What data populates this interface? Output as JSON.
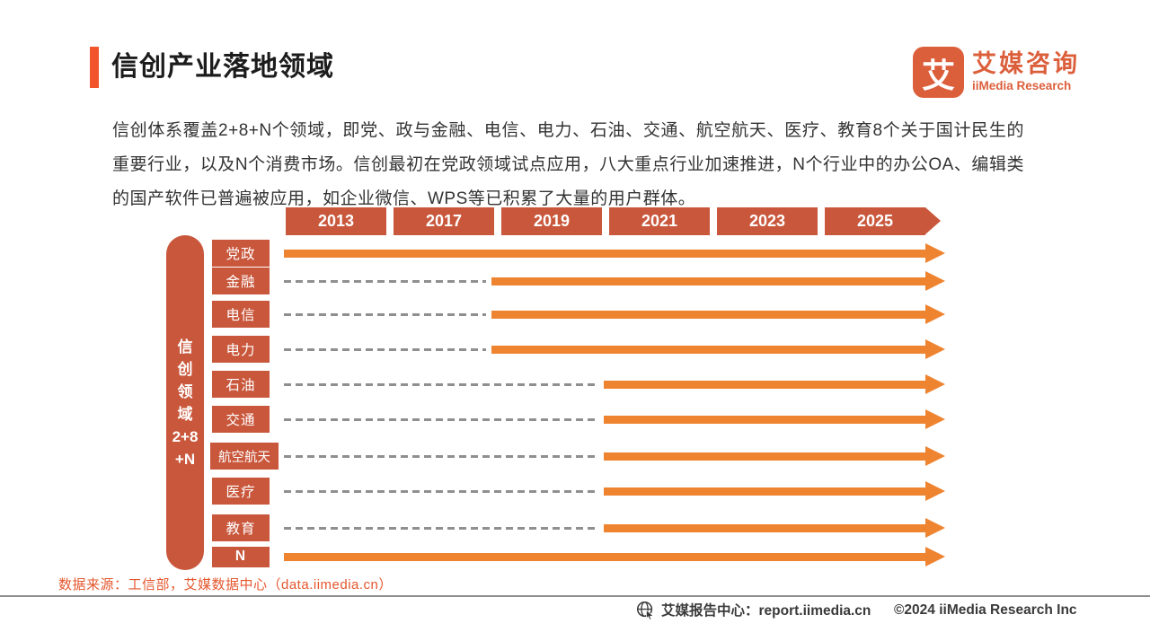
{
  "page": {
    "title": "信创产业落地领域",
    "logo": {
      "icon_char": "艾",
      "name_cn": "艾媒咨询",
      "name_en": "iiMedia Research"
    },
    "intro": "信创体系覆盖2+8+N个领域，即党、政与金融、电信、电力、石油、交通、航空航天、医疗、教育8个关于国计民生的重要行业，以及N个消费市场。信创最初在党政领域试点应用，八大重点行业加速推进，N个行业中的办公OA、编辑类的国产软件已普遍被应用，如企业微信、WPS等已积累了大量的用户群体。",
    "source_note": "数据来源：工信部，艾媒数据中心（data.iimedia.cn）",
    "footer": {
      "report_center": "艾媒报告中心：report.iimedia.cn",
      "copyright": "©2024  iiMedia Research Inc"
    }
  },
  "chart_data": {
    "type": "timeline",
    "title": "信创产业落地领域",
    "x_years": [
      "2013",
      "2017",
      "2019",
      "2021",
      "2023",
      "2025"
    ],
    "axis_group_label": "信创领域2+8+N",
    "axis_label_lines": [
      "信",
      "创",
      "领",
      "域",
      "2+8",
      "+N"
    ],
    "rows": [
      {
        "label": "党政",
        "solid_from_year": "2013"
      },
      {
        "label": "金融",
        "solid_from_year": "2019"
      },
      {
        "label": "电信",
        "solid_from_year": "2019"
      },
      {
        "label": "电力",
        "solid_from_year": "2019"
      },
      {
        "label": "石油",
        "solid_from_year": "2021"
      },
      {
        "label": "交通",
        "solid_from_year": "2021"
      },
      {
        "label": "航空航天",
        "solid_from_year": "2021"
      },
      {
        "label": "医疗",
        "solid_from_year": "2021"
      },
      {
        "label": "教育",
        "solid_from_year": "2021"
      },
      {
        "label": "N",
        "solid_from_year": "2013"
      }
    ],
    "legend_position": "none",
    "grid": false
  },
  "colors": {
    "terracotta": "#c9573c",
    "arrow_orange": "#ef8430",
    "accent_orange": "#f2552c",
    "dash_gray": "#8f8f8f",
    "source_orange": "#e4572e",
    "logo_orange": "#dc5f3c",
    "footer_gray": "#3a3a3a"
  }
}
